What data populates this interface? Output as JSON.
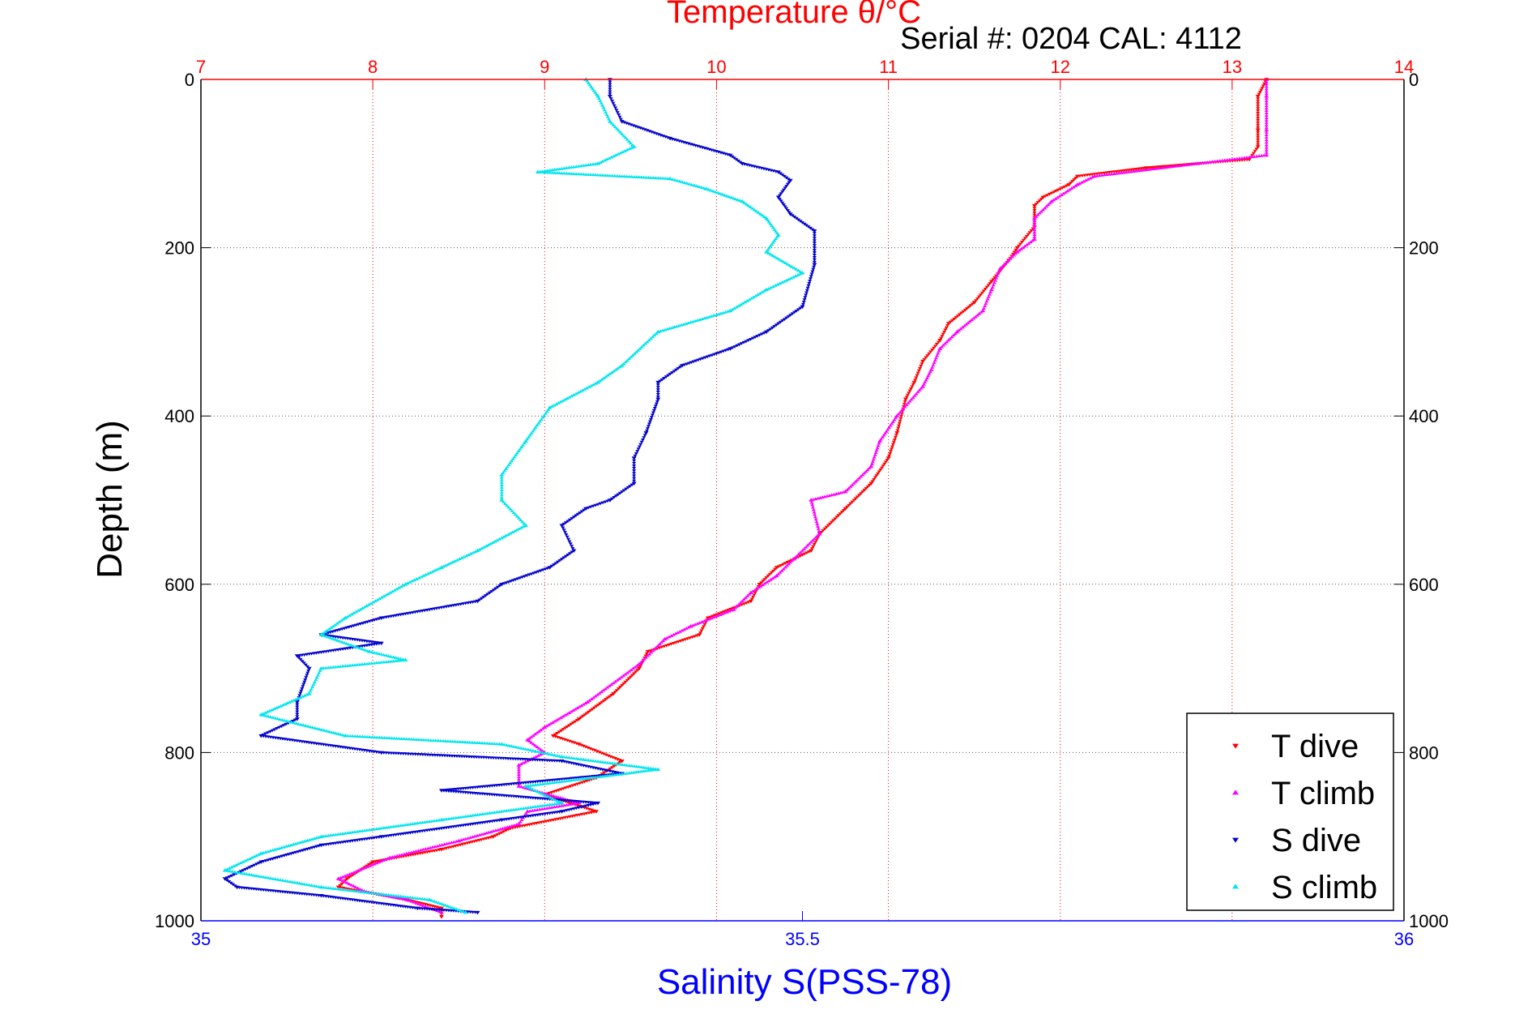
{
  "chart_data": {
    "type": "scatter",
    "title": "Temperature θ/°C",
    "subtitle": "Serial #: 0204  CAL: 4112",
    "ylabel": "Depth (m)",
    "xlabel_bottom": "Salinity S(PSS-78)",
    "y_axis": {
      "range": [
        0,
        1000
      ],
      "reversed": true,
      "ticks": [
        "0",
        "200",
        "400",
        "600",
        "800",
        "1000"
      ]
    },
    "x_top_temperature": {
      "range": [
        7,
        14
      ],
      "ticks": [
        "7",
        "8",
        "9",
        "10",
        "11",
        "12",
        "13",
        "14"
      ]
    },
    "x_bottom_salinity": {
      "range": [
        35,
        36
      ],
      "ticks": [
        "35",
        "35.5",
        "36"
      ]
    },
    "grid": true,
    "legend_position": "bottom-right",
    "colors": {
      "temperature_axis": "#ff0000",
      "salinity_axis": "#0000ff",
      "t_dive": "#ff0000",
      "t_climb": "#ff00ff",
      "s_dive": "#0000cc",
      "s_climb": "#00e5ee"
    },
    "series": [
      {
        "name": "T dive",
        "axis": "temperature",
        "marker": "down-triangle",
        "color": "#ff0000",
        "points": [
          [
            13.2,
            0
          ],
          [
            13.15,
            20
          ],
          [
            13.15,
            60
          ],
          [
            13.15,
            80
          ],
          [
            13.1,
            95
          ],
          [
            12.5,
            105
          ],
          [
            12.1,
            115
          ],
          [
            12.05,
            125
          ],
          [
            11.9,
            140
          ],
          [
            11.85,
            150
          ],
          [
            11.85,
            175
          ],
          [
            11.75,
            200
          ],
          [
            11.7,
            215
          ],
          [
            11.6,
            240
          ],
          [
            11.5,
            265
          ],
          [
            11.35,
            290
          ],
          [
            11.3,
            310
          ],
          [
            11.2,
            335
          ],
          [
            11.15,
            360
          ],
          [
            11.1,
            380
          ],
          [
            11.05,
            420
          ],
          [
            11.0,
            450
          ],
          [
            10.9,
            480
          ],
          [
            10.75,
            510
          ],
          [
            10.6,
            540
          ],
          [
            10.55,
            560
          ],
          [
            10.35,
            580
          ],
          [
            10.25,
            600
          ],
          [
            10.2,
            620
          ],
          [
            9.95,
            640
          ],
          [
            9.9,
            660
          ],
          [
            9.6,
            680
          ],
          [
            9.55,
            700
          ],
          [
            9.4,
            730
          ],
          [
            9.2,
            760
          ],
          [
            9.05,
            780
          ],
          [
            9.2,
            790
          ],
          [
            9.45,
            810
          ],
          [
            9.3,
            830
          ],
          [
            9.0,
            850
          ],
          [
            9.3,
            870
          ],
          [
            8.8,
            890
          ],
          [
            8.7,
            900
          ],
          [
            8.4,
            915
          ],
          [
            8.0,
            930
          ],
          [
            7.85,
            950
          ],
          [
            7.8,
            960
          ],
          [
            8.2,
            975
          ],
          [
            8.4,
            985
          ],
          [
            8.4,
            995
          ]
        ]
      },
      {
        "name": "T climb",
        "axis": "temperature",
        "marker": "up-triangle",
        "color": "#ff00ff",
        "points": [
          [
            13.2,
            0
          ],
          [
            13.2,
            20
          ],
          [
            13.2,
            60
          ],
          [
            13.2,
            90
          ],
          [
            12.8,
            100
          ],
          [
            12.2,
            115
          ],
          [
            12.1,
            125
          ],
          [
            11.95,
            145
          ],
          [
            11.85,
            165
          ],
          [
            11.85,
            190
          ],
          [
            11.75,
            205
          ],
          [
            11.65,
            225
          ],
          [
            11.6,
            250
          ],
          [
            11.55,
            275
          ],
          [
            11.4,
            300
          ],
          [
            11.3,
            320
          ],
          [
            11.25,
            345
          ],
          [
            11.2,
            365
          ],
          [
            11.05,
            400
          ],
          [
            10.95,
            430
          ],
          [
            10.9,
            460
          ],
          [
            10.75,
            490
          ],
          [
            10.55,
            500
          ],
          [
            10.6,
            540
          ],
          [
            10.45,
            570
          ],
          [
            10.35,
            590
          ],
          [
            10.2,
            610
          ],
          [
            10.1,
            630
          ],
          [
            9.85,
            650
          ],
          [
            9.7,
            665
          ],
          [
            9.55,
            695
          ],
          [
            9.25,
            740
          ],
          [
            9.0,
            770
          ],
          [
            8.9,
            785
          ],
          [
            9.0,
            800
          ],
          [
            8.85,
            815
          ],
          [
            8.85,
            840
          ],
          [
            9.2,
            860
          ],
          [
            8.9,
            870
          ],
          [
            8.85,
            885
          ],
          [
            8.5,
            905
          ],
          [
            8.1,
            925
          ],
          [
            7.8,
            950
          ],
          [
            7.95,
            965
          ],
          [
            8.2,
            975
          ],
          [
            8.4,
            990
          ]
        ]
      },
      {
        "name": "S dive",
        "axis": "salinity",
        "marker": "down-triangle",
        "color": "#0000cc",
        "points": [
          [
            35.34,
            0
          ],
          [
            35.34,
            20
          ],
          [
            35.35,
            50
          ],
          [
            35.39,
            70
          ],
          [
            35.44,
            90
          ],
          [
            35.45,
            100
          ],
          [
            35.48,
            110
          ],
          [
            35.49,
            120
          ],
          [
            35.48,
            140
          ],
          [
            35.49,
            160
          ],
          [
            35.51,
            180
          ],
          [
            35.51,
            220
          ],
          [
            35.5,
            270
          ],
          [
            35.47,
            300
          ],
          [
            35.44,
            320
          ],
          [
            35.4,
            340
          ],
          [
            35.38,
            360
          ],
          [
            35.38,
            380
          ],
          [
            35.37,
            420
          ],
          [
            35.36,
            450
          ],
          [
            35.36,
            480
          ],
          [
            35.34,
            500
          ],
          [
            35.32,
            510
          ],
          [
            35.3,
            530
          ],
          [
            35.31,
            560
          ],
          [
            35.29,
            580
          ],
          [
            35.25,
            600
          ],
          [
            35.23,
            620
          ],
          [
            35.15,
            640
          ],
          [
            35.1,
            660
          ],
          [
            35.15,
            670
          ],
          [
            35.08,
            685
          ],
          [
            35.09,
            700
          ],
          [
            35.08,
            740
          ],
          [
            35.08,
            760
          ],
          [
            35.05,
            780
          ],
          [
            35.15,
            800
          ],
          [
            35.3,
            810
          ],
          [
            35.35,
            825
          ],
          [
            35.2,
            845
          ],
          [
            35.33,
            860
          ],
          [
            35.3,
            870
          ],
          [
            35.25,
            880
          ],
          [
            35.15,
            900
          ],
          [
            35.1,
            910
          ],
          [
            35.05,
            930
          ],
          [
            35.02,
            950
          ],
          [
            35.03,
            960
          ],
          [
            35.1,
            970
          ],
          [
            35.18,
            985
          ],
          [
            35.23,
            990
          ]
        ]
      },
      {
        "name": "S climb",
        "axis": "salinity",
        "marker": "up-triangle",
        "color": "#00e5ee",
        "points": [
          [
            35.32,
            0
          ],
          [
            35.33,
            20
          ],
          [
            35.34,
            50
          ],
          [
            35.36,
            80
          ],
          [
            35.33,
            100
          ],
          [
            35.28,
            110
          ],
          [
            35.39,
            118
          ],
          [
            35.42,
            130
          ],
          [
            35.45,
            145
          ],
          [
            35.47,
            165
          ],
          [
            35.48,
            185
          ],
          [
            35.47,
            205
          ],
          [
            35.5,
            230
          ],
          [
            35.47,
            250
          ],
          [
            35.44,
            275
          ],
          [
            35.38,
            300
          ],
          [
            35.35,
            340
          ],
          [
            35.33,
            360
          ],
          [
            35.29,
            390
          ],
          [
            35.27,
            430
          ],
          [
            35.25,
            470
          ],
          [
            35.25,
            500
          ],
          [
            35.27,
            530
          ],
          [
            35.23,
            560
          ],
          [
            35.2,
            580
          ],
          [
            35.17,
            600
          ],
          [
            35.12,
            640
          ],
          [
            35.1,
            660
          ],
          [
            35.14,
            680
          ],
          [
            35.17,
            690
          ],
          [
            35.1,
            700
          ],
          [
            35.09,
            730
          ],
          [
            35.05,
            755
          ],
          [
            35.12,
            780
          ],
          [
            35.25,
            790
          ],
          [
            35.3,
            805
          ],
          [
            35.38,
            820
          ],
          [
            35.27,
            840
          ],
          [
            35.3,
            860
          ],
          [
            35.2,
            880
          ],
          [
            35.1,
            900
          ],
          [
            35.05,
            920
          ],
          [
            35.02,
            940
          ],
          [
            35.1,
            960
          ],
          [
            35.19,
            975
          ],
          [
            35.22,
            990
          ]
        ]
      }
    ]
  }
}
